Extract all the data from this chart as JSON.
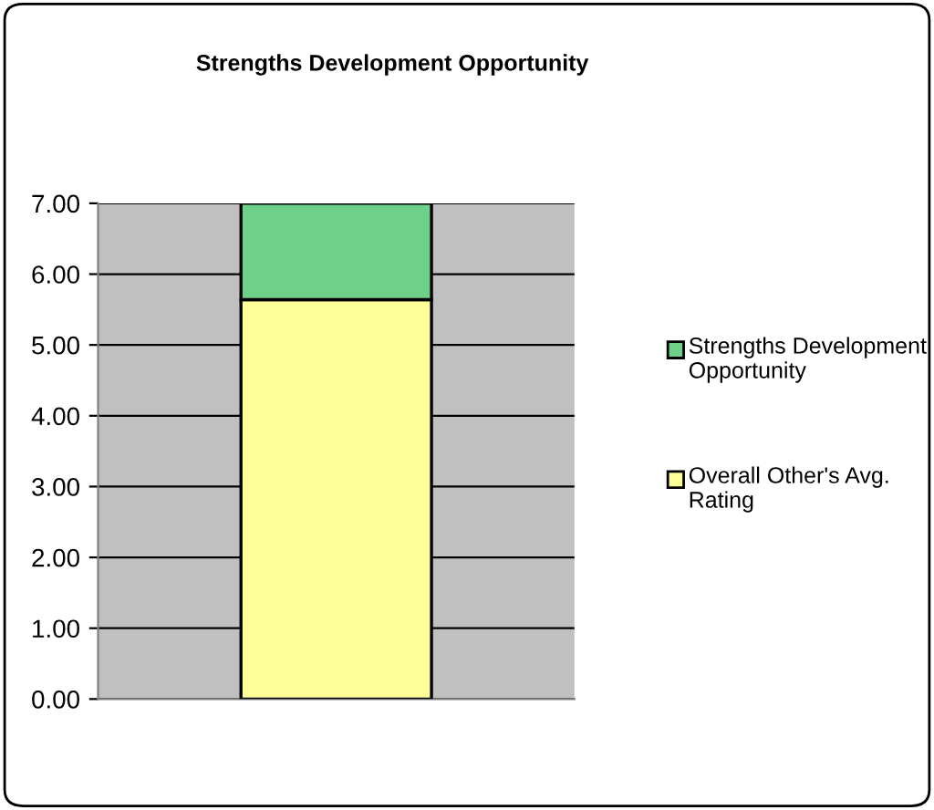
{
  "chart_data": {
    "type": "bar",
    "title": "Strengths Development Opportunity",
    "categories": [
      null
    ],
    "stacked": true,
    "series": [
      {
        "name": "Overall Other's Avg. Rating",
        "color": "#ffff99",
        "values": [
          5.64
        ]
      },
      {
        "name": "Strengths Development Opportunity",
        "color": "#6fd08a",
        "values": [
          1.36
        ]
      }
    ],
    "ylim": [
      0,
      7
    ],
    "yticks": [
      {
        "value": 0,
        "label": "0.00"
      },
      {
        "value": 1,
        "label": "1.00"
      },
      {
        "value": 2,
        "label": "2.00"
      },
      {
        "value": 3,
        "label": "3.00"
      },
      {
        "value": 4,
        "label": "4.00"
      },
      {
        "value": 5,
        "label": "5.00"
      },
      {
        "value": 6,
        "label": "6.00"
      },
      {
        "value": 7,
        "label": "7.00"
      }
    ],
    "grid": "y",
    "legend": "right"
  }
}
